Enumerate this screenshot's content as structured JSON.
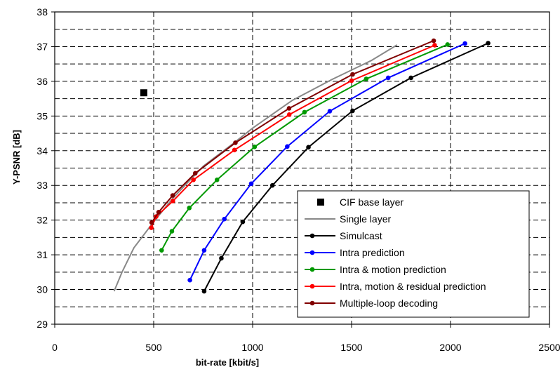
{
  "chart_data": {
    "type": "line",
    "xlabel": "bit-rate [kbit/s]",
    "ylabel": "Y-PSNR [dB]",
    "xlim": [
      0,
      2500
    ],
    "ylim": [
      29,
      38
    ],
    "xticks": [
      0,
      500,
      1000,
      1500,
      2000,
      2500
    ],
    "yticks": [
      29,
      30,
      31,
      32,
      33,
      34,
      35,
      36,
      37,
      38
    ],
    "grid": "dashed",
    "legend_position": "bottom-right",
    "series": [
      {
        "name": "CIF base layer",
        "style": "square-marker",
        "color": "#000000",
        "points": [
          [
            450,
            35.67
          ]
        ]
      },
      {
        "name": "Single layer",
        "style": "line",
        "color": "#888888",
        "points": [
          [
            300,
            29.95
          ],
          [
            340,
            30.5
          ],
          [
            400,
            31.2
          ],
          [
            500,
            31.95
          ],
          [
            600,
            32.65
          ],
          [
            750,
            33.55
          ],
          [
            900,
            34.2
          ],
          [
            1000,
            34.65
          ],
          [
            1200,
            35.45
          ],
          [
            1400,
            36.05
          ],
          [
            1600,
            36.6
          ],
          [
            1730,
            37.05
          ]
        ]
      },
      {
        "name": "Simulcast",
        "style": "line-markers",
        "color": "#000000",
        "points": [
          [
            755,
            29.95
          ],
          [
            842,
            30.9
          ],
          [
            950,
            31.95
          ],
          [
            1100,
            33.0
          ],
          [
            1282,
            34.1
          ],
          [
            1505,
            35.15
          ],
          [
            1800,
            36.1
          ],
          [
            2190,
            37.1
          ]
        ]
      },
      {
        "name": "Intra prediction",
        "style": "line-markers",
        "color": "#0000ff",
        "points": [
          [
            683,
            30.27
          ],
          [
            755,
            31.13
          ],
          [
            857,
            32.03
          ],
          [
            993,
            33.05
          ],
          [
            1175,
            34.12
          ],
          [
            1390,
            35.14
          ],
          [
            1685,
            36.1
          ],
          [
            2073,
            37.09
          ]
        ]
      },
      {
        "name": "Intra & motion prediction",
        "style": "line-markers",
        "color": "#009900",
        "points": [
          [
            540,
            31.13
          ],
          [
            592,
            31.68
          ],
          [
            680,
            32.35
          ],
          [
            820,
            33.16
          ],
          [
            1010,
            34.11
          ],
          [
            1262,
            35.11
          ],
          [
            1574,
            36.07
          ],
          [
            1985,
            37.06
          ]
        ]
      },
      {
        "name": "Intra, motion & residual prediction",
        "style": "line-markers",
        "color": "#ff0000",
        "points": [
          [
            488,
            31.78
          ],
          [
            512,
            32.1
          ],
          [
            597,
            32.55
          ],
          [
            701,
            33.16
          ],
          [
            908,
            34.02
          ],
          [
            1185,
            35.04
          ],
          [
            1500,
            36.02
          ],
          [
            1920,
            37.04
          ]
        ]
      },
      {
        "name": "Multiple-loop decoding",
        "style": "line-markers",
        "color": "#800000",
        "points": [
          [
            490,
            31.93
          ],
          [
            525,
            32.23
          ],
          [
            596,
            32.71
          ],
          [
            710,
            33.35
          ],
          [
            913,
            34.23
          ],
          [
            1184,
            35.22
          ],
          [
            1505,
            36.2
          ],
          [
            1915,
            37.17
          ]
        ]
      }
    ]
  }
}
